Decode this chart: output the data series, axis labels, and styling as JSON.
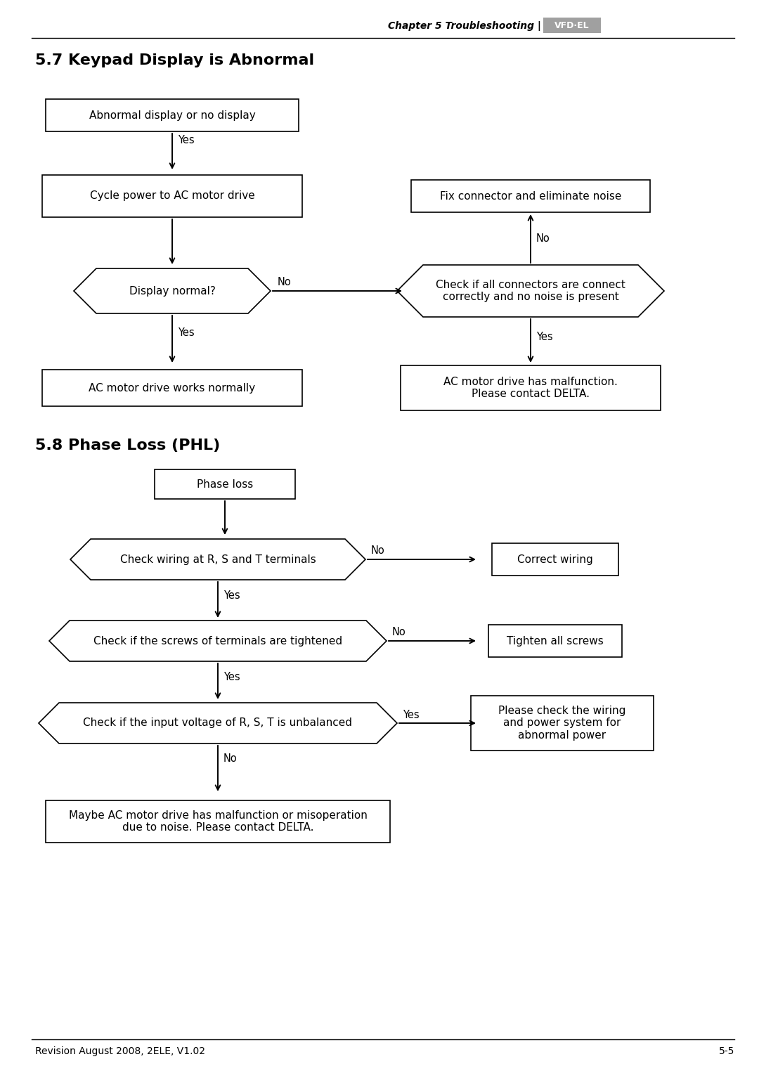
{
  "page_title": "Chapter 5 Troubleshooting",
  "logo_text": "VFD·EL",
  "section1_title": "5.7 Keypad Display is Abnormal",
  "section2_title": "5.8 Phase Loss (PHL)",
  "footer_left": "Revision August 2008, 2ELE, V1.02",
  "footer_right": "5-5",
  "bg_color": "#ffffff",
  "box_edge_color": "#000000",
  "text_color": "#000000",
  "arrow_color": "#000000",
  "logo_bg": "#a0a0a0"
}
